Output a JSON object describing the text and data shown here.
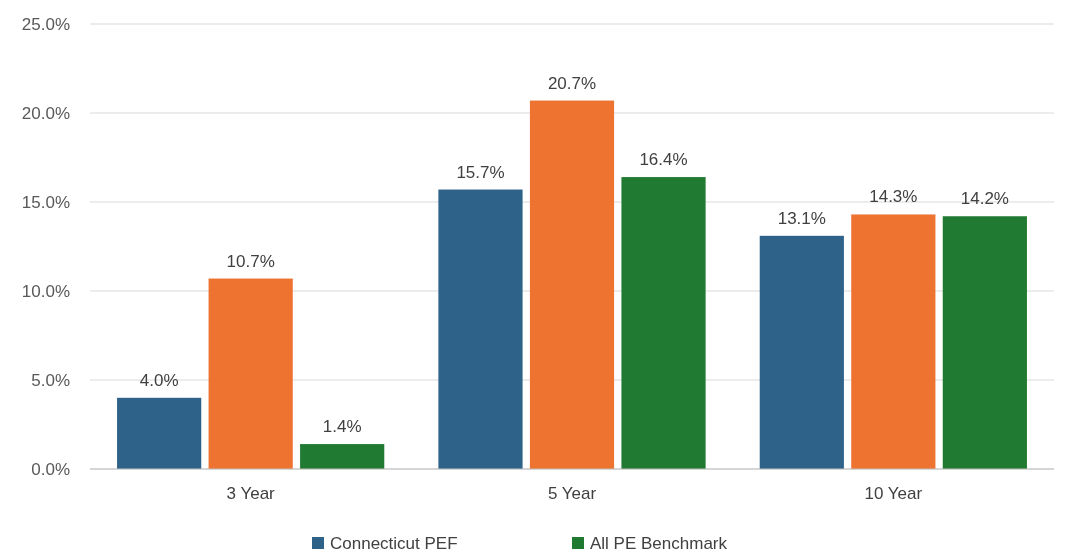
{
  "chart_data": {
    "type": "bar",
    "categories": [
      "3 Year",
      "5 Year",
      "10 Year"
    ],
    "series": [
      {
        "name": "Connecticut PEF",
        "color": "#2e6289",
        "values": [
          4.0,
          15.7,
          13.1
        ]
      },
      {
        "color": "#ee7330",
        "values": [
          10.7,
          20.7,
          14.3
        ]
      },
      {
        "name": "All PE Benchmark",
        "color": "#217a31",
        "values": [
          1.4,
          16.4,
          14.2
        ]
      }
    ],
    "ylim": [
      0,
      25
    ],
    "yticks": [
      {
        "value": 0,
        "label": "0.0%"
      },
      {
        "value": 5,
        "label": "5.0%"
      },
      {
        "value": 10,
        "label": "10.0%"
      },
      {
        "value": 15,
        "label": "15.0%"
      },
      {
        "value": 20,
        "label": "20.0%"
      },
      {
        "value": 25,
        "label": "25.0%"
      }
    ],
    "value_labels": [
      [
        "4.0%",
        "15.7%",
        "13.1%"
      ],
      [
        "10.7%",
        "20.7%",
        "14.3%"
      ],
      [
        "1.4%",
        "16.4%",
        "14.2%"
      ]
    ],
    "grid": "y",
    "legend": "bottom"
  }
}
